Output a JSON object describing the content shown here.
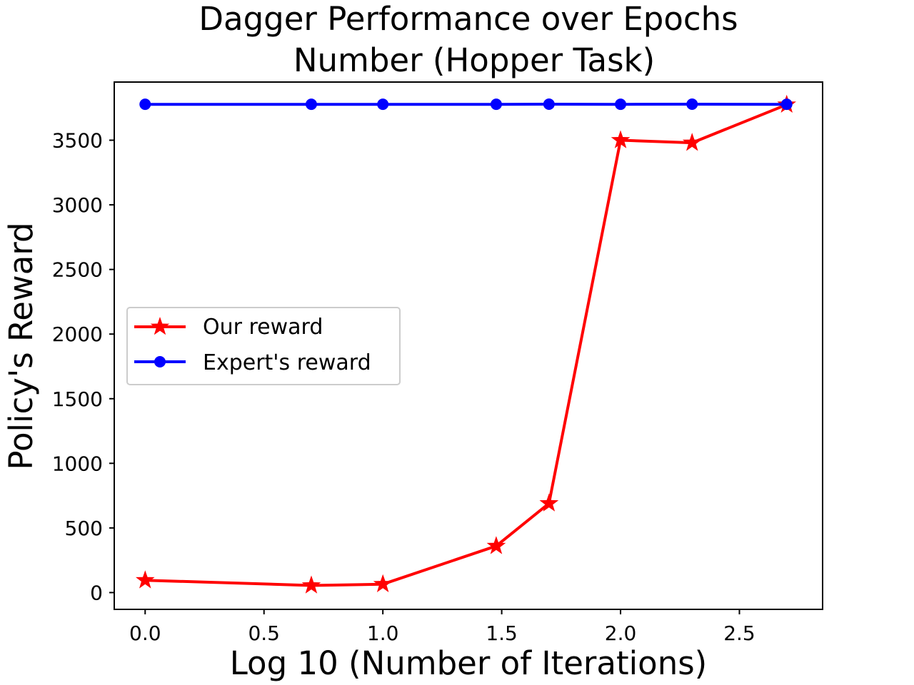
{
  "chart_data": {
    "type": "line",
    "title_lines": [
      "Dagger Performance over Epochs",
      "Number (Hopper Task)"
    ],
    "xlabel": "Log 10 (Number of Iterations)",
    "ylabel": "Policy's Reward",
    "xlim": [
      -0.13,
      2.85
    ],
    "ylim": [
      -130,
      3950
    ],
    "xticks": [
      0.0,
      0.5,
      1.0,
      1.5,
      2.0,
      2.5
    ],
    "xtick_labels": [
      "0.0",
      "0.5",
      "1.0",
      "1.5",
      "2.0",
      "2.5"
    ],
    "yticks": [
      0,
      500,
      1000,
      1500,
      2000,
      2500,
      3000,
      3500
    ],
    "ytick_labels": [
      "0",
      "500",
      "1000",
      "1500",
      "2000",
      "2500",
      "3000",
      "3500"
    ],
    "grid": false,
    "legend_position": "center-left",
    "x": [
      0.0,
      0.699,
      1.0,
      1.477,
      1.699,
      2.0,
      2.301,
      2.699
    ],
    "series": [
      {
        "name": "Our reward",
        "color": "#ff0000",
        "marker": "star",
        "values": [
          95,
          55,
          65,
          360,
          690,
          3500,
          3480,
          3775
        ]
      },
      {
        "name": "Expert's reward",
        "color": "#0000ff",
        "marker": "circle",
        "values": [
          3778,
          3778,
          3778,
          3778,
          3779,
          3778,
          3779,
          3778
        ]
      }
    ]
  }
}
